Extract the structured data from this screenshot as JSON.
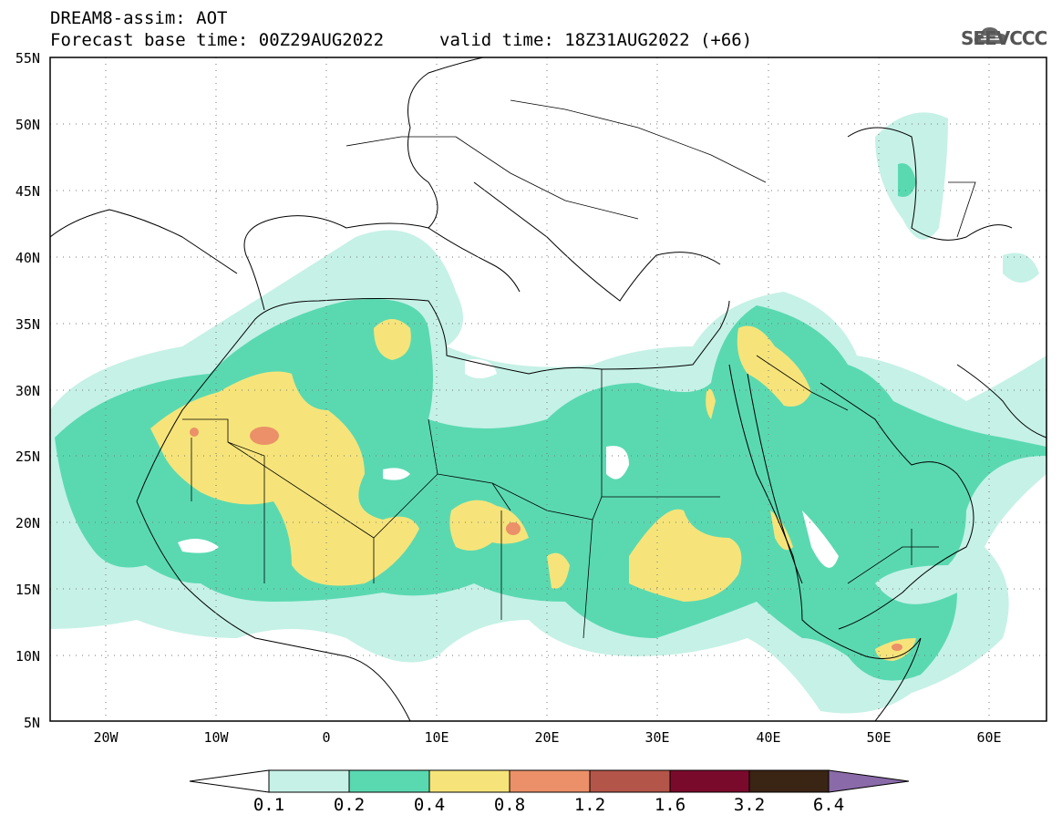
{
  "header": {
    "title_line1": "DREAM8-assim: AOT",
    "base_time": "Forecast base time: 00Z29AUG2022",
    "valid_time": "valid time: 18Z31AUG2022 (+66)",
    "logo_text": "SEEVCCC"
  },
  "map": {
    "lat_labels": [
      "55N",
      "50N",
      "45N",
      "40N",
      "35N",
      "30N",
      "25N",
      "20N",
      "15N",
      "10N",
      "5N"
    ],
    "lon_labels": [
      "20W",
      "10W",
      "0",
      "10E",
      "20E",
      "30E",
      "40E",
      "50E",
      "60E"
    ],
    "lon_range": [
      -25,
      65
    ],
    "lat_range": [
      5,
      55
    ]
  },
  "colorbar": {
    "labels": [
      "0.1",
      "0.2",
      "0.4",
      "0.8",
      "1.2",
      "1.6",
      "3.2",
      "6.4"
    ],
    "colors": [
      "#ffffff",
      "#c6f1e6",
      "#5ad9b1",
      "#f6e47a",
      "#eb9068",
      "#b35549",
      "#7a0a2c",
      "#3a2414",
      "#8a6aa8"
    ]
  },
  "colors": {
    "aot_0_1": "#c6f1e6",
    "aot_0_2": "#5ad9b1",
    "aot_0_4": "#f6e47a",
    "aot_0_8": "#eb9068",
    "aot_1_2": "#b35549"
  }
}
